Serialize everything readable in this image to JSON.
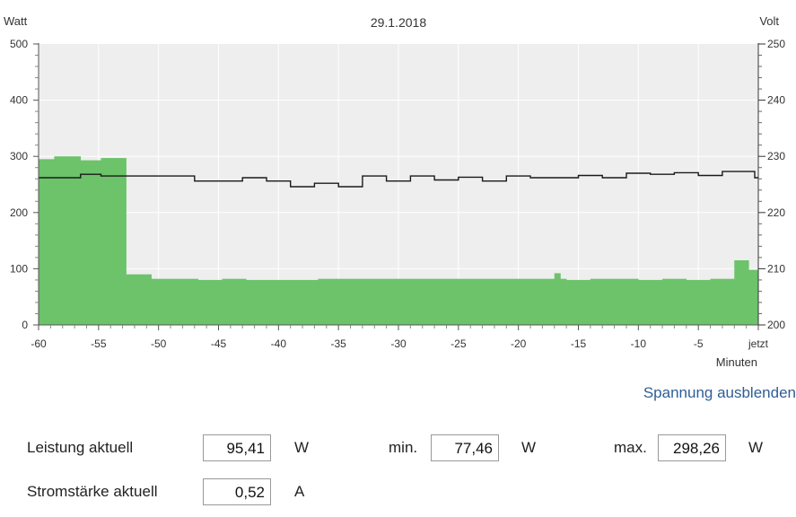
{
  "header": {
    "left_axis_title": "Watt",
    "right_axis_title": "Volt",
    "date": "29.1.2018"
  },
  "chart_data": {
    "type": "bar",
    "x_unit_label": "Minuten",
    "x_ticks": [
      "-60",
      "-55",
      "-50",
      "-45",
      "-40",
      "-35",
      "-30",
      "-25",
      "-20",
      "-15",
      "-10",
      "-5",
      "jetzt"
    ],
    "x_range": [
      -60,
      0
    ],
    "y_left_ticks": [
      "0",
      "100",
      "200",
      "300",
      "400",
      "500"
    ],
    "y_left_range": [
      0,
      500
    ],
    "y_right_ticks": [
      "200",
      "210",
      "220",
      "230",
      "240",
      "250"
    ],
    "y_right_range": [
      200,
      250
    ],
    "grid": true,
    "series": [
      {
        "name": "Watt",
        "kind": "bars",
        "color": "#6cc36a",
        "points": [
          {
            "x0": -60.0,
            "x1": -58.7,
            "y": 295
          },
          {
            "x0": -58.7,
            "x1": -56.5,
            "y": 300
          },
          {
            "x0": -56.5,
            "x1": -54.8,
            "y": 293
          },
          {
            "x0": -54.8,
            "x1": -52.7,
            "y": 297
          },
          {
            "x0": -52.7,
            "x1": -50.6,
            "y": 90
          },
          {
            "x0": -50.6,
            "x1": -46.7,
            "y": 82
          },
          {
            "x0": -46.7,
            "x1": -44.7,
            "y": 80
          },
          {
            "x0": -44.7,
            "x1": -42.7,
            "y": 82
          },
          {
            "x0": -42.7,
            "x1": -36.7,
            "y": 80
          },
          {
            "x0": -36.7,
            "x1": -17.0,
            "y": 82
          },
          {
            "x0": -17.0,
            "x1": -16.5,
            "y": 92
          },
          {
            "x0": -16.5,
            "x1": -16.0,
            "y": 82
          },
          {
            "x0": -16.0,
            "x1": -14.0,
            "y": 80
          },
          {
            "x0": -14.0,
            "x1": -10.0,
            "y": 82
          },
          {
            "x0": -10.0,
            "x1": -8.0,
            "y": 80
          },
          {
            "x0": -8.0,
            "x1": -6.0,
            "y": 82
          },
          {
            "x0": -6.0,
            "x1": -4.0,
            "y": 80
          },
          {
            "x0": -4.0,
            "x1": -2.0,
            "y": 82
          },
          {
            "x0": -2.0,
            "x1": -0.8,
            "y": 115
          },
          {
            "x0": -0.8,
            "x1": 0.0,
            "y": 98
          }
        ]
      },
      {
        "name": "Volt",
        "kind": "step",
        "color": "#1a1a1a",
        "points": [
          {
            "x0": -60.0,
            "x1": -56.5,
            "y": 226.2
          },
          {
            "x0": -56.5,
            "x1": -54.8,
            "y": 226.8
          },
          {
            "x0": -54.8,
            "x1": -47.0,
            "y": 226.5
          },
          {
            "x0": -47.0,
            "x1": -43.0,
            "y": 225.6
          },
          {
            "x0": -43.0,
            "x1": -41.0,
            "y": 226.2
          },
          {
            "x0": -41.0,
            "x1": -39.0,
            "y": 225.6
          },
          {
            "x0": -39.0,
            "x1": -37.0,
            "y": 224.6
          },
          {
            "x0": -37.0,
            "x1": -35.0,
            "y": 225.2
          },
          {
            "x0": -35.0,
            "x1": -33.0,
            "y": 224.6
          },
          {
            "x0": -33.0,
            "x1": -31.0,
            "y": 226.5
          },
          {
            "x0": -31.0,
            "x1": -29.0,
            "y": 225.6
          },
          {
            "x0": -29.0,
            "x1": -27.0,
            "y": 226.5
          },
          {
            "x0": -27.0,
            "x1": -25.0,
            "y": 225.8
          },
          {
            "x0": -25.0,
            "x1": -23.0,
            "y": 226.3
          },
          {
            "x0": -23.0,
            "x1": -21.0,
            "y": 225.6
          },
          {
            "x0": -21.0,
            "x1": -19.0,
            "y": 226.5
          },
          {
            "x0": -19.0,
            "x1": -17.0,
            "y": 226.2
          },
          {
            "x0": -17.0,
            "x1": -15.0,
            "y": 226.2
          },
          {
            "x0": -15.0,
            "x1": -13.0,
            "y": 226.6
          },
          {
            "x0": -13.0,
            "x1": -11.0,
            "y": 226.2
          },
          {
            "x0": -11.0,
            "x1": -9.0,
            "y": 227.0
          },
          {
            "x0": -9.0,
            "x1": -7.0,
            "y": 226.8
          },
          {
            "x0": -7.0,
            "x1": -5.0,
            "y": 227.1
          },
          {
            "x0": -5.0,
            "x1": -3.0,
            "y": 226.6
          },
          {
            "x0": -3.0,
            "x1": -0.3,
            "y": 227.3
          },
          {
            "x0": -0.3,
            "x1": 0.0,
            "y": 226.2
          }
        ]
      }
    ]
  },
  "toggle_voltage_label": "Spannung ausblenden",
  "stats": {
    "power_label": "Leistung aktuell",
    "power_value": "95,41",
    "power_unit": "W",
    "min_label": "min.",
    "min_value": "77,46",
    "min_unit": "W",
    "max_label": "max.",
    "max_value": "298,26",
    "max_unit": "W",
    "current_label": "Stromstärke aktuell",
    "current_value": "0,52",
    "current_unit": "A"
  }
}
